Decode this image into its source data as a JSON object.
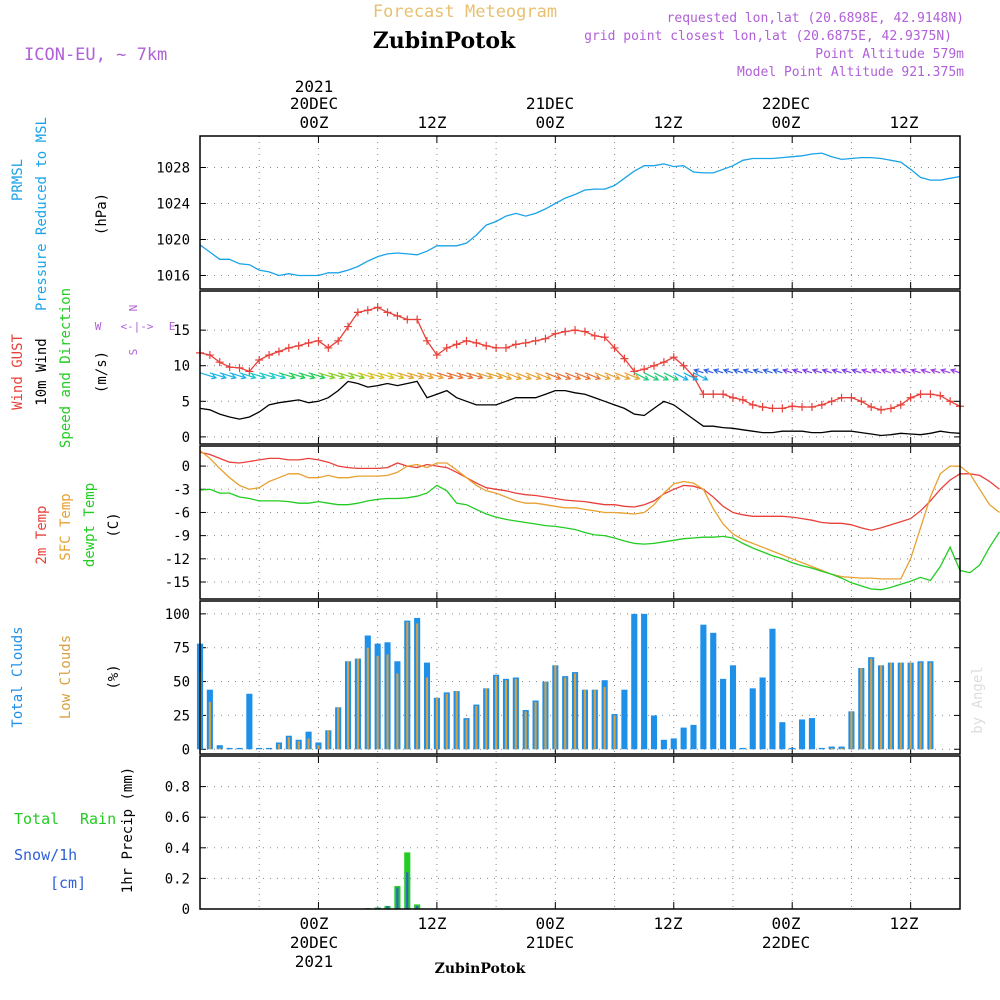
{
  "header": {
    "model": "ICON-EU, ~ 7km",
    "supertitle": "Forecast Meteogram",
    "station": "ZubinPotok",
    "requested": "requested lon,lat (20.6898E, 42.9148N)",
    "closest": "grid point closest lon,lat (20.6875E, 42.9375N)",
    "point_altitude": "Point Altitude 579m",
    "model_altitude": "Model Point Altitude 921.375m",
    "credit": "by Angel",
    "footer_station": "ZubinPotok"
  },
  "time_axis": {
    "year": "2021",
    "day_labels": [
      "20DEC",
      "21DEC",
      "22DEC"
    ],
    "hour_labels": [
      "00Z",
      "12Z",
      "00Z",
      "12Z",
      "00Z",
      "12Z"
    ],
    "hour_positions": [
      12,
      24,
      36,
      48,
      60,
      72
    ],
    "range": [
      0,
      77
    ]
  },
  "panels": {
    "pressure": {
      "label_lines": [
        "PRMSL",
        "Pressure Reduced to MSL"
      ],
      "unit": "(hPa)"
    },
    "wind": {
      "label_gust": "Wind GUST",
      "label_wind": "10m Wind",
      "label_dir": "Speed and Direction",
      "unit": "(m/s)",
      "compass": [
        "W",
        "E",
        "N",
        "S"
      ]
    },
    "temp": {
      "label_2m": "2m Temp",
      "label_sfc": "SFC Temp",
      "label_dew": "dewpt Temp",
      "unit": "(C)"
    },
    "cloud": {
      "label_total": "Total Clouds",
      "label_low": "Low Clouds",
      "unit": "(%)"
    },
    "precip": {
      "label_total": "Total",
      "label_rain": "Rain",
      "label_snow": "Snow/1h",
      "label_cm": "[cm]",
      "unit": "1hr Precip (mm)"
    }
  },
  "colors": {
    "pressure": "#1aa3e8",
    "gust": "#e8403a",
    "wind": "#000000",
    "t2m": "#e8403a",
    "sfc": "#e8a030",
    "dew": "#22cc22",
    "total_cloud": "#1e90e8",
    "low_cloud": "#d8a040",
    "rain": "#22cc22",
    "snow": "#3060d8",
    "header_label": "#b060d8",
    "title_faint": "#e8c070"
  },
  "chart_data": [
    {
      "type": "line",
      "title": "PRMSL Pressure Reduced to MSL",
      "ylabel": "(hPa)",
      "ylim": [
        1014.5,
        1031.5
      ],
      "yticks": [
        1016,
        1020,
        1024,
        1028
      ],
      "x_start": 0,
      "x_step": 1,
      "series": [
        {
          "name": "PRMSL",
          "color": "#1aa3e8",
          "values": [
            1019.4,
            1018.6,
            1017.8,
            1017.8,
            1017.3,
            1017.2,
            1016.6,
            1016.4,
            1016.0,
            1016.2,
            1016.0,
            1016.0,
            1016.0,
            1016.3,
            1016.3,
            1016.6,
            1017.0,
            1017.6,
            1018.1,
            1018.4,
            1018.5,
            1018.4,
            1018.3,
            1018.7,
            1019.3,
            1019.3,
            1019.3,
            1019.6,
            1020.5,
            1021.6,
            1022.0,
            1022.6,
            1022.9,
            1022.6,
            1022.9,
            1023.4,
            1024.0,
            1024.6,
            1025.0,
            1025.5,
            1025.6,
            1025.6,
            1026.0,
            1026.8,
            1027.6,
            1028.2,
            1028.2,
            1028.4,
            1028.1,
            1028.2,
            1027.5,
            1027.4,
            1027.4,
            1027.8,
            1028.2,
            1028.8,
            1029.0,
            1029.0,
            1029.0,
            1029.1,
            1029.2,
            1029.3,
            1029.5,
            1029.6,
            1029.2,
            1028.9,
            1029.0,
            1029.1,
            1029.1,
            1029.0,
            1028.8,
            1028.6,
            1027.8,
            1026.9,
            1026.6,
            1026.6,
            1026.8,
            1027.0
          ]
        }
      ]
    },
    {
      "type": "line",
      "title": "Wind GUST / 10m Wind Speed and Direction",
      "ylabel": "(m/s)",
      "ylim": [
        -1,
        20.5
      ],
      "yticks": [
        0,
        5,
        10,
        15
      ],
      "x_start": 0,
      "x_step": 1,
      "series": [
        {
          "name": "Wind GUST",
          "color": "#e8403a",
          "values": [
            11.8,
            11.5,
            10.5,
            9.8,
            9.7,
            9.2,
            10.8,
            11.5,
            12.0,
            12.5,
            12.8,
            13.2,
            13.5,
            12.5,
            13.5,
            15.5,
            17.5,
            17.8,
            18.2,
            17.5,
            17.0,
            16.5,
            16.5,
            13.5,
            11.5,
            12.5,
            13.0,
            13.5,
            13.2,
            12.8,
            12.5,
            12.5,
            13.0,
            13.2,
            13.5,
            13.8,
            14.5,
            14.8,
            15.0,
            14.8,
            14.2,
            14.0,
            12.5,
            11.0,
            9.2,
            9.5,
            10.0,
            10.5,
            11.2,
            10.0,
            8.5,
            6.0,
            6.0,
            6.0,
            5.5,
            5.2,
            4.5,
            4.2,
            4.0,
            4.0,
            4.3,
            4.2,
            4.2,
            4.5,
            5.0,
            5.5,
            5.5,
            5.0,
            4.2,
            3.8,
            4.0,
            4.5,
            5.5,
            6.0,
            6.0,
            5.8,
            5.0,
            4.3
          ]
        },
        {
          "name": "10m Wind",
          "color": "#000000",
          "values": [
            4.0,
            3.8,
            3.2,
            2.8,
            2.5,
            2.8,
            3.5,
            4.5,
            4.8,
            5.0,
            5.2,
            4.8,
            5.0,
            5.5,
            6.5,
            7.8,
            7.5,
            7.0,
            7.2,
            7.5,
            7.2,
            7.5,
            7.8,
            5.5,
            6.0,
            6.5,
            5.5,
            5.0,
            4.5,
            4.5,
            4.5,
            5.0,
            5.5,
            5.5,
            5.5,
            6.0,
            6.5,
            6.5,
            6.2,
            6.0,
            5.5,
            5.0,
            4.5,
            4.0,
            3.2,
            3.0,
            4.0,
            5.0,
            4.5,
            3.5,
            2.5,
            1.5,
            1.5,
            1.3,
            1.2,
            1.0,
            0.8,
            0.6,
            0.6,
            0.8,
            0.8,
            0.8,
            0.6,
            0.6,
            0.8,
            0.8,
            0.8,
            0.6,
            0.4,
            0.2,
            0.3,
            0.5,
            0.4,
            0.3,
            0.5,
            0.8,
            0.6,
            0.5
          ]
        }
      ]
    },
    {
      "type": "line",
      "title": "2m Temp / SFC Temp / dewpt Temp",
      "ylabel": "(C)",
      "ylim": [
        -17.2,
        2.6
      ],
      "yticks": [
        0,
        -3,
        -6,
        -9,
        -12,
        -15
      ],
      "x_start": 0,
      "x_step": 1,
      "series": [
        {
          "name": "2m Temp",
          "color": "#e8403a",
          "values": [
            1.8,
            1.5,
            1.0,
            0.5,
            0.4,
            0.6,
            0.8,
            1.0,
            1.0,
            0.8,
            0.8,
            1.0,
            0.8,
            0.5,
            0.0,
            -0.2,
            -0.3,
            -0.3,
            -0.3,
            -0.2,
            0.4,
            0.0,
            -0.2,
            0.2,
            0.0,
            -0.2,
            -0.8,
            -1.5,
            -2.2,
            -2.8,
            -3.0,
            -3.2,
            -3.5,
            -3.7,
            -3.8,
            -4.0,
            -4.2,
            -4.4,
            -4.5,
            -4.6,
            -4.8,
            -5.0,
            -5.0,
            -5.2,
            -5.3,
            -5.0,
            -4.5,
            -3.6,
            -3.0,
            -2.5,
            -2.6,
            -3.0,
            -4.0,
            -5.2,
            -6.0,
            -6.3,
            -6.5,
            -6.5,
            -6.5,
            -6.5,
            -6.6,
            -6.8,
            -7.0,
            -7.3,
            -7.4,
            -7.4,
            -7.6,
            -8.0,
            -8.3,
            -8.0,
            -7.6,
            -7.2,
            -6.8,
            -5.8,
            -4.5,
            -3.0,
            -1.8,
            -1.0,
            -1.0,
            -1.2,
            -2.0,
            -3.0
          ]
        },
        {
          "name": "SFC Temp",
          "color": "#e8a030",
          "values": [
            2.0,
            1.0,
            -0.3,
            -1.5,
            -2.5,
            -3.0,
            -2.8,
            -2.0,
            -1.5,
            -1.0,
            -1.0,
            -1.5,
            -1.5,
            -1.2,
            -1.5,
            -1.5,
            -1.3,
            -1.3,
            -1.3,
            -1.2,
            -0.8,
            0.0,
            0.2,
            -0.2,
            0.4,
            0.4,
            -0.5,
            -1.5,
            -2.5,
            -3.2,
            -3.5,
            -4.0,
            -4.5,
            -4.8,
            -4.8,
            -5.0,
            -5.2,
            -5.4,
            -5.4,
            -5.6,
            -5.8,
            -6.0,
            -6.0,
            -6.1,
            -6.2,
            -6.0,
            -5.0,
            -3.5,
            -2.3,
            -2.0,
            -2.2,
            -3.0,
            -5.5,
            -7.5,
            -8.8,
            -9.5,
            -10.0,
            -10.5,
            -11.0,
            -11.5,
            -12.0,
            -12.5,
            -13.0,
            -13.5,
            -14.0,
            -14.3,
            -14.4,
            -14.5,
            -14.5,
            -14.6,
            -14.6,
            -14.6,
            -12.0,
            -8.0,
            -4.0,
            -1.0,
            0.0,
            0.0,
            -1.0,
            -3.0,
            -5.0,
            -6.0
          ]
        },
        {
          "name": "dewpt Temp",
          "color": "#22cc22",
          "values": [
            -3.1,
            -3.0,
            -3.5,
            -3.5,
            -4.0,
            -4.2,
            -4.5,
            -4.5,
            -4.5,
            -4.6,
            -4.8,
            -4.8,
            -4.6,
            -4.8,
            -5.0,
            -5.0,
            -4.8,
            -4.5,
            -4.3,
            -4.2,
            -4.2,
            -4.1,
            -3.9,
            -3.5,
            -2.5,
            -3.2,
            -4.8,
            -5.0,
            -5.6,
            -6.2,
            -6.6,
            -6.9,
            -7.1,
            -7.3,
            -7.5,
            -7.7,
            -7.8,
            -8.0,
            -8.2,
            -8.6,
            -8.9,
            -9.0,
            -9.3,
            -9.7,
            -10.0,
            -10.1,
            -10.0,
            -9.8,
            -9.6,
            -9.4,
            -9.3,
            -9.2,
            -9.2,
            -9.1,
            -9.3,
            -10.0,
            -10.6,
            -11.1,
            -11.6,
            -12.0,
            -12.5,
            -12.9,
            -13.2,
            -13.6,
            -14.0,
            -14.5,
            -15.1,
            -15.5,
            -15.9,
            -16.0,
            -15.7,
            -15.3,
            -14.9,
            -14.4,
            -14.8,
            -13.0,
            -10.5,
            -13.5,
            -13.8,
            -12.8,
            -10.5,
            -8.5
          ]
        }
      ]
    },
    {
      "type": "bar",
      "title": "Total Clouds / Low Clouds",
      "ylabel": "(%)",
      "ylim": [
        -3.5,
        109.5
      ],
      "yticks": [
        0,
        25,
        50,
        75,
        100
      ],
      "x_start": 0,
      "x_step": 1,
      "series": [
        {
          "name": "Total Clouds",
          "color": "#1e90e8",
          "values": [
            78,
            44,
            3,
            1,
            1,
            41,
            1,
            1,
            5,
            10,
            7,
            13,
            5,
            14,
            31,
            65,
            67,
            84,
            78,
            79,
            65,
            95,
            97,
            64,
            38,
            42,
            43,
            23,
            33,
            45,
            55,
            52,
            53,
            29,
            36,
            50,
            62,
            54,
            57,
            44,
            44,
            51,
            26,
            44,
            100,
            100,
            25,
            7,
            8,
            16,
            18,
            92,
            86,
            52,
            62,
            1,
            45,
            53,
            89,
            20,
            1,
            22,
            23,
            1,
            2,
            2,
            28,
            60,
            68,
            62,
            64,
            64,
            64,
            65,
            65
          ]
        },
        {
          "name": "Low Clouds",
          "color": "#d8a040",
          "values": [
            57,
            35,
            1,
            0,
            0,
            0,
            0,
            0,
            4,
            9,
            6,
            8,
            3,
            14,
            31,
            65,
            67,
            75,
            69,
            70,
            56,
            94,
            93,
            53,
            38,
            41,
            43,
            22,
            32,
            45,
            54,
            51,
            52,
            28,
            35,
            50,
            62,
            53,
            56,
            44,
            44,
            46,
            25,
            0,
            0,
            0,
            0,
            0,
            0,
            0,
            0,
            0,
            0,
            0,
            0,
            0,
            0,
            0,
            0,
            0,
            0,
            0,
            0,
            0,
            1,
            1,
            28,
            60,
            67,
            62,
            64,
            64,
            64,
            64,
            64
          ]
        }
      ]
    },
    {
      "type": "bar",
      "title": "Total Rain / Snow 1hr Precip",
      "ylabel": "1hr Precip (mm)",
      "ylim": [
        0,
        1.0
      ],
      "yticks": [
        0,
        0.2,
        0.4,
        0.6,
        0.8
      ],
      "x_start": 17,
      "x_step": 1,
      "series": [
        {
          "name": "Total Rain",
          "color": "#22cc22",
          "values": [
            0.005,
            0.01,
            0.02,
            0.15,
            0.37,
            0.03
          ]
        },
        {
          "name": "Snow/1h",
          "color": "#3060d8",
          "values": [
            0.005,
            0.01,
            0.02,
            0.14,
            0.24,
            0.02
          ]
        }
      ]
    }
  ]
}
